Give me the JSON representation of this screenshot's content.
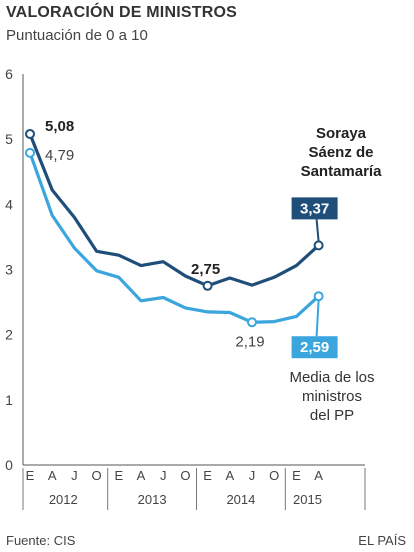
{
  "header": {
    "title": "VALORACIÓN DE MINISTROS",
    "subtitle": "Puntuación de 0 a 10"
  },
  "footer": {
    "source": "Fuente: CIS",
    "brand": "EL PAÍS"
  },
  "chart_data": {
    "type": "line",
    "title": "VALORACIÓN DE MINISTROS",
    "subtitle": "Puntuación de 0 a 10",
    "ylim": [
      0,
      6
    ],
    "yticks": [
      0,
      1,
      2,
      3,
      4,
      5,
      6
    ],
    "grid": false,
    "x": [
      "2012-01",
      "2012-04",
      "2012-07",
      "2012-10",
      "2013-01",
      "2013-04",
      "2013-07",
      "2013-10",
      "2014-01",
      "2014-04",
      "2014-07",
      "2014-10",
      "2015-01",
      "2015-04"
    ],
    "x_tick_labels": [
      "E",
      "A",
      "J",
      "O",
      "E",
      "A",
      "J",
      "O",
      "E",
      "A",
      "J",
      "O",
      "E",
      "A"
    ],
    "years": [
      "2012",
      "2013",
      "2014",
      "2015"
    ],
    "series": [
      {
        "name": "Soraya Sáenz de Santamaría",
        "color": "#1f4e79",
        "values": [
          5.08,
          4.22,
          3.8,
          3.28,
          3.22,
          3.06,
          3.12,
          2.9,
          2.75,
          2.87,
          2.76,
          2.88,
          3.06,
          3.37
        ]
      },
      {
        "name": "Media de los ministros del PP",
        "color": "#3aa6dd",
        "values": [
          4.79,
          3.83,
          3.33,
          2.98,
          2.88,
          2.52,
          2.57,
          2.41,
          2.35,
          2.34,
          2.19,
          2.2,
          2.28,
          2.59
        ]
      }
    ],
    "data_labels": [
      {
        "series": 0,
        "point": 0,
        "text": "5,08"
      },
      {
        "series": 1,
        "point": 0,
        "text": "4,79"
      },
      {
        "series": 0,
        "point": 8,
        "text": "2,75"
      },
      {
        "series": 1,
        "point": 10,
        "text": "2,19"
      },
      {
        "series": 0,
        "point": 13,
        "text": "3,37"
      },
      {
        "series": 1,
        "point": 13,
        "text": "2,59"
      }
    ],
    "annotations": [
      {
        "series": 0,
        "lines": [
          "Soraya",
          "Sáenz de",
          "Santamaría"
        ]
      },
      {
        "series": 1,
        "lines": [
          "Media de los",
          "ministros",
          "del PP"
        ]
      }
    ]
  }
}
